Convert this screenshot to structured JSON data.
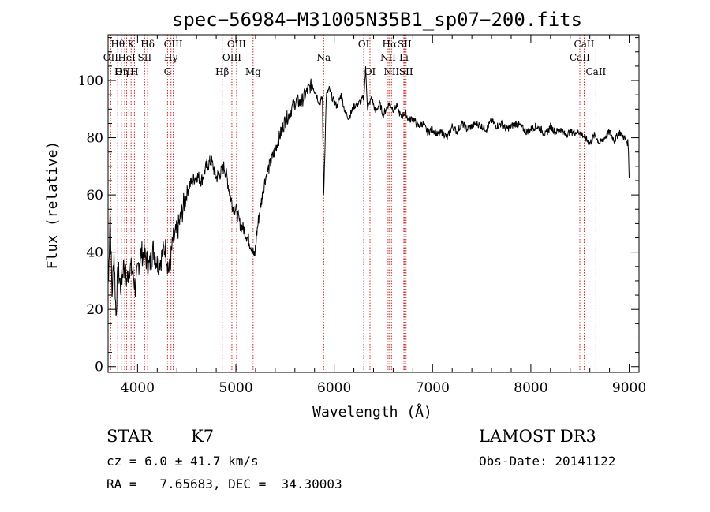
{
  "chart_data": {
    "type": "line",
    "title": "spec−56984−M31005N35B1_sp07−200.fits",
    "xlabel": "Wavelength (Å)",
    "ylabel": "Flux (relative)",
    "xlim": [
      3700,
      9100
    ],
    "ylim": [
      -2,
      116
    ],
    "x_ticks": [
      4000,
      5000,
      6000,
      7000,
      8000,
      9000
    ],
    "y_ticks": [
      0,
      20,
      40,
      60,
      80,
      100
    ],
    "x_minor_step": 200,
    "y_minor_step": 5,
    "grid": false,
    "line_color": "#000000",
    "marker_color": "#cc2222",
    "spectrum_anchors": {
      "x": [
        3705,
        3720,
        3740,
        3760,
        3780,
        3800,
        3830,
        3860,
        3890,
        3920,
        3950,
        3980,
        4010,
        4040,
        4080,
        4120,
        4160,
        4200,
        4240,
        4280,
        4320,
        4360,
        4400,
        4440,
        4480,
        4520,
        4560,
        4600,
        4650,
        4700,
        4750,
        4800,
        4850,
        4880,
        4910,
        4940,
        4970,
        5000,
        5040,
        5080,
        5120,
        5160,
        5190,
        5210,
        5240,
        5270,
        5300,
        5340,
        5380,
        5420,
        5460,
        5500,
        5540,
        5580,
        5620,
        5660,
        5700,
        5740,
        5780,
        5810,
        5850,
        5880,
        5893,
        5920,
        5950,
        5990,
        6030,
        6070,
        6110,
        6150,
        6200,
        6250,
        6300,
        6320,
        6340,
        6380,
        6420,
        6460,
        6500,
        6540,
        6563,
        6600,
        6640,
        6680,
        6720,
        6760,
        6800,
        6850,
        6900,
        6950,
        7000,
        7050,
        7100,
        7150,
        7200,
        7250,
        7300,
        7350,
        7400,
        7450,
        7500,
        7550,
        7600,
        7650,
        7700,
        7750,
        7800,
        7850,
        7900,
        7950,
        8000,
        8050,
        8100,
        8150,
        8200,
        8250,
        8300,
        8350,
        8400,
        8450,
        8500,
        8550,
        8600,
        8650,
        8700,
        8750,
        8800,
        8850,
        8900,
        8950,
        8990,
        9000
      ],
      "y": [
        30,
        55,
        25,
        40,
        18,
        34,
        28,
        36,
        30,
        35,
        33,
        27,
        36,
        40,
        38,
        35,
        41,
        36,
        38,
        42,
        33,
        44,
        47,
        52,
        58,
        63,
        65,
        67,
        65,
        70,
        72,
        66,
        68,
        70,
        66,
        60,
        56,
        55,
        50,
        48,
        45,
        42,
        38,
        46,
        54,
        60,
        66,
        70,
        74,
        78,
        82,
        86,
        88,
        91,
        93,
        92,
        95,
        97,
        99,
        96,
        92,
        94,
        60,
        95,
        97,
        93,
        91,
        95,
        89,
        87,
        91,
        92,
        94,
        104,
        90,
        94,
        89,
        92,
        88,
        91,
        92,
        90,
        91,
        87,
        89,
        86,
        87,
        84,
        85,
        82,
        83,
        81,
        82,
        80,
        84,
        82,
        85,
        83,
        84,
        85,
        84,
        83,
        86,
        84,
        85,
        83,
        84,
        85,
        84,
        82,
        83,
        84,
        83,
        81,
        84,
        82,
        83,
        81,
        82,
        82,
        82,
        80,
        78,
        81,
        78,
        80,
        82,
        79,
        82,
        80,
        78,
        66
      ]
    },
    "spectral_lines": [
      {
        "name": "Hθ",
        "wavelength": 3798,
        "row": 0
      },
      {
        "name": "OII",
        "wavelength": 3727,
        "row": 1
      },
      {
        "name": "OIII",
        "wavelength": 3869,
        "row": 2
      },
      {
        "name": "K",
        "wavelength": 3934,
        "row": 0
      },
      {
        "name": "HeI",
        "wavelength": 3889,
        "row": 1
      },
      {
        "name": "Hη",
        "wavelength": 3835,
        "row": 2
      },
      {
        "name": "Hδ",
        "wavelength": 4102,
        "row": 0
      },
      {
        "name": "SII",
        "wavelength": 4072,
        "row": 1
      },
      {
        "name": "H",
        "wavelength": 3968,
        "row": 2
      },
      {
        "name": "OIII",
        "wavelength": 4363,
        "row": 0
      },
      {
        "name": "Hγ",
        "wavelength": 4340,
        "row": 1
      },
      {
        "name": "G",
        "wavelength": 4305,
        "row": 2
      },
      {
        "name": "OIII",
        "wavelength": 5007,
        "row": 0
      },
      {
        "name": "OIII",
        "wavelength": 4959,
        "row": 1
      },
      {
        "name": "Hβ",
        "wavelength": 4861,
        "row": 2
      },
      {
        "name": "Mg",
        "wavelength": 5175,
        "row": 2
      },
      {
        "name": "Na",
        "wavelength": 5893,
        "row": 1
      },
      {
        "name": "OI",
        "wavelength": 6300,
        "row": 0
      },
      {
        "name": "OI",
        "wavelength": 6364,
        "row": 2
      },
      {
        "name": "Hα",
        "wavelength": 6563,
        "row": 0
      },
      {
        "name": "SII",
        "wavelength": 6716,
        "row": 0
      },
      {
        "name": "NII",
        "wavelength": 6548,
        "row": 1
      },
      {
        "name": "Li",
        "wavelength": 6708,
        "row": 1
      },
      {
        "name": "NII",
        "wavelength": 6583,
        "row": 2
      },
      {
        "name": "SII",
        "wavelength": 6731,
        "row": 2
      },
      {
        "name": "CaII",
        "wavelength": 8542,
        "row": 0
      },
      {
        "name": "CaII",
        "wavelength": 8498,
        "row": 1
      },
      {
        "name": "CaII",
        "wavelength": 8662,
        "row": 2
      }
    ]
  },
  "info": {
    "class": "STAR",
    "subclass": "K7",
    "survey": "LAMOST DR3",
    "cz": "cz = 6.0 ± 41.7 km/s",
    "obs_date": "Obs-Date: 20141122",
    "radec": "RA =   7.65683, DEC =  34.30003"
  }
}
